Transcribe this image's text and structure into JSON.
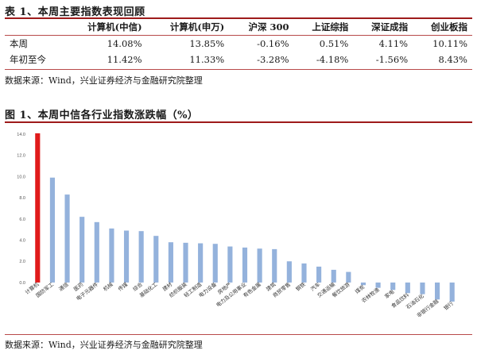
{
  "table": {
    "title": "表 1、本周主要指数表现回顾",
    "headers": [
      "",
      "计算机(中信)",
      "计算机(申万)",
      "沪深 300",
      "上证综指",
      "深证成指",
      "创业板指"
    ],
    "rows": [
      [
        "本周",
        "14.08%",
        "13.85%",
        "-0.16%",
        "0.51%",
        "4.11%",
        "10.11%"
      ],
      [
        "年初至今",
        "11.42%",
        "11.33%",
        "-3.28%",
        "-4.18%",
        "-1.56%",
        "8.43%"
      ]
    ],
    "source": "数据来源：Wind，兴业证券经济与金融研究院整理"
  },
  "figure": {
    "title": "图 1、本周中信各行业指数涨跌幅（%）",
    "source": "数据来源：Wind，兴业证券经济与金融研究院整理"
  },
  "colors": {
    "highlight": "#e01b1b",
    "bar": "#94b2dc",
    "rule": "#9e1b1b"
  },
  "chart_data": {
    "type": "bar",
    "categories": [
      "计算机",
      "国防军工",
      "通信",
      "医药",
      "电子元器件",
      "机械",
      "传媒",
      "综合",
      "基础化工",
      "建材",
      "纺织服装",
      "轻工制造",
      "电力设备",
      "房地产",
      "电力及公用事业",
      "有色金属",
      "建筑",
      "商贸零售",
      "钢铁",
      "汽车",
      "交通运输",
      "餐饮旅游",
      "煤炭",
      "农林牧渔",
      "家电",
      "食品饮料",
      "石油石化",
      "非银行金融",
      "银行"
    ],
    "values": [
      14.08,
      9.9,
      8.3,
      6.2,
      5.7,
      5.1,
      4.9,
      4.85,
      4.4,
      3.8,
      3.75,
      3.7,
      3.65,
      3.4,
      3.3,
      3.2,
      3.15,
      2.0,
      1.8,
      1.5,
      1.2,
      1.0,
      -0.25,
      -0.5,
      -0.7,
      -1.0,
      -1.1,
      -1.6,
      -1.8
    ],
    "highlight_index": 0,
    "ylim": [
      -3,
      14
    ],
    "yticks": [
      "14.0",
      "12.0",
      "10.0",
      "8.0",
      "6.0",
      "4.0",
      "2.0",
      "0.0"
    ],
    "yticks_values": [
      14,
      12,
      10,
      8,
      6,
      4,
      2,
      0
    ],
    "xlabel": "",
    "ylabel": ""
  }
}
